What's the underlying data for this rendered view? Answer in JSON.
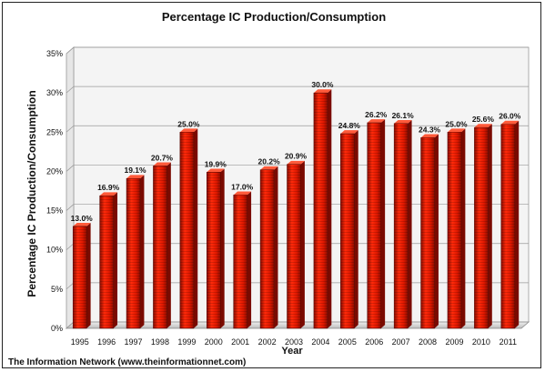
{
  "chart_data": {
    "type": "bar",
    "title": "Percentage IC Production/Consumption",
    "xlabel": "Year",
    "ylabel": "Percentage IC Production/Consumption",
    "categories": [
      "1995",
      "1996",
      "1997",
      "1998",
      "1999",
      "2000",
      "2001",
      "2002",
      "2003",
      "2004",
      "2005",
      "2006",
      "2007",
      "2008",
      "2009",
      "2010",
      "2011"
    ],
    "values": [
      13.0,
      16.9,
      19.1,
      20.7,
      25.0,
      19.9,
      17.0,
      20.2,
      20.9,
      30.0,
      24.8,
      26.2,
      26.1,
      24.3,
      25.0,
      25.6,
      26.0
    ],
    "data_labels": [
      "13.0%",
      "16.9%",
      "19.1%",
      "20.7%",
      "25.0%",
      "19.9%",
      "17.0%",
      "20.2%",
      "20.9%",
      "30.0%",
      "24.8%",
      "26.2%",
      "26.1%",
      "24.3%",
      "25.0%",
      "25.6%",
      "26.0%"
    ],
    "ylim": [
      0,
      35
    ],
    "yticks": [
      "0%",
      "5%",
      "10%",
      "15%",
      "20%",
      "25%",
      "30%",
      "35%"
    ],
    "grid": true,
    "bar_color": "#e01800"
  },
  "footer": "The Information Network (www.theinformationnet.com)"
}
